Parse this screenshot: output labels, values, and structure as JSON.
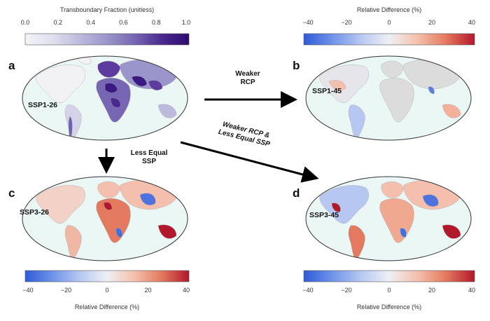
{
  "colorbar_top_left": {
    "title": "Transboundary Fraction (unitless)",
    "ticks": [
      "0.0",
      "0.2",
      "0.4",
      "0.6",
      "0.8",
      "1.0"
    ],
    "colors": [
      "#f4f4f7",
      "#e0dfee",
      "#bcbadd",
      "#9a95ca",
      "#7766b3",
      "#4b2a8f",
      "#2d0a6e"
    ]
  },
  "colorbar_diff": {
    "title": "Relative Difference (%)",
    "ticks": [
      "−40",
      "−20",
      "0",
      "20",
      "40"
    ],
    "colors": [
      "#2f5bd6",
      "#6f93e8",
      "#b6c8f1",
      "#eef0f4",
      "#f4c0ad",
      "#e3795e",
      "#b2182b"
    ]
  },
  "panels": {
    "a": {
      "letter": "a",
      "scenario": "SSP1-26"
    },
    "b": {
      "letter": "b",
      "scenario": "SSP1-45"
    },
    "c": {
      "letter": "c",
      "scenario": "SSP3-26"
    },
    "d": {
      "letter": "d",
      "scenario": "SSP3-45"
    }
  },
  "arrows": {
    "ab": {
      "line1": "Weaker",
      "line2": "RCP"
    },
    "ac": {
      "line1": "Less Equal",
      "line2": "SSP"
    },
    "ad": {
      "line1": "Weaker RCP &",
      "line2": "Less Equal SSP"
    }
  },
  "ocean_color": "#eaf7f4",
  "land_neutral": "#dcdcdc"
}
